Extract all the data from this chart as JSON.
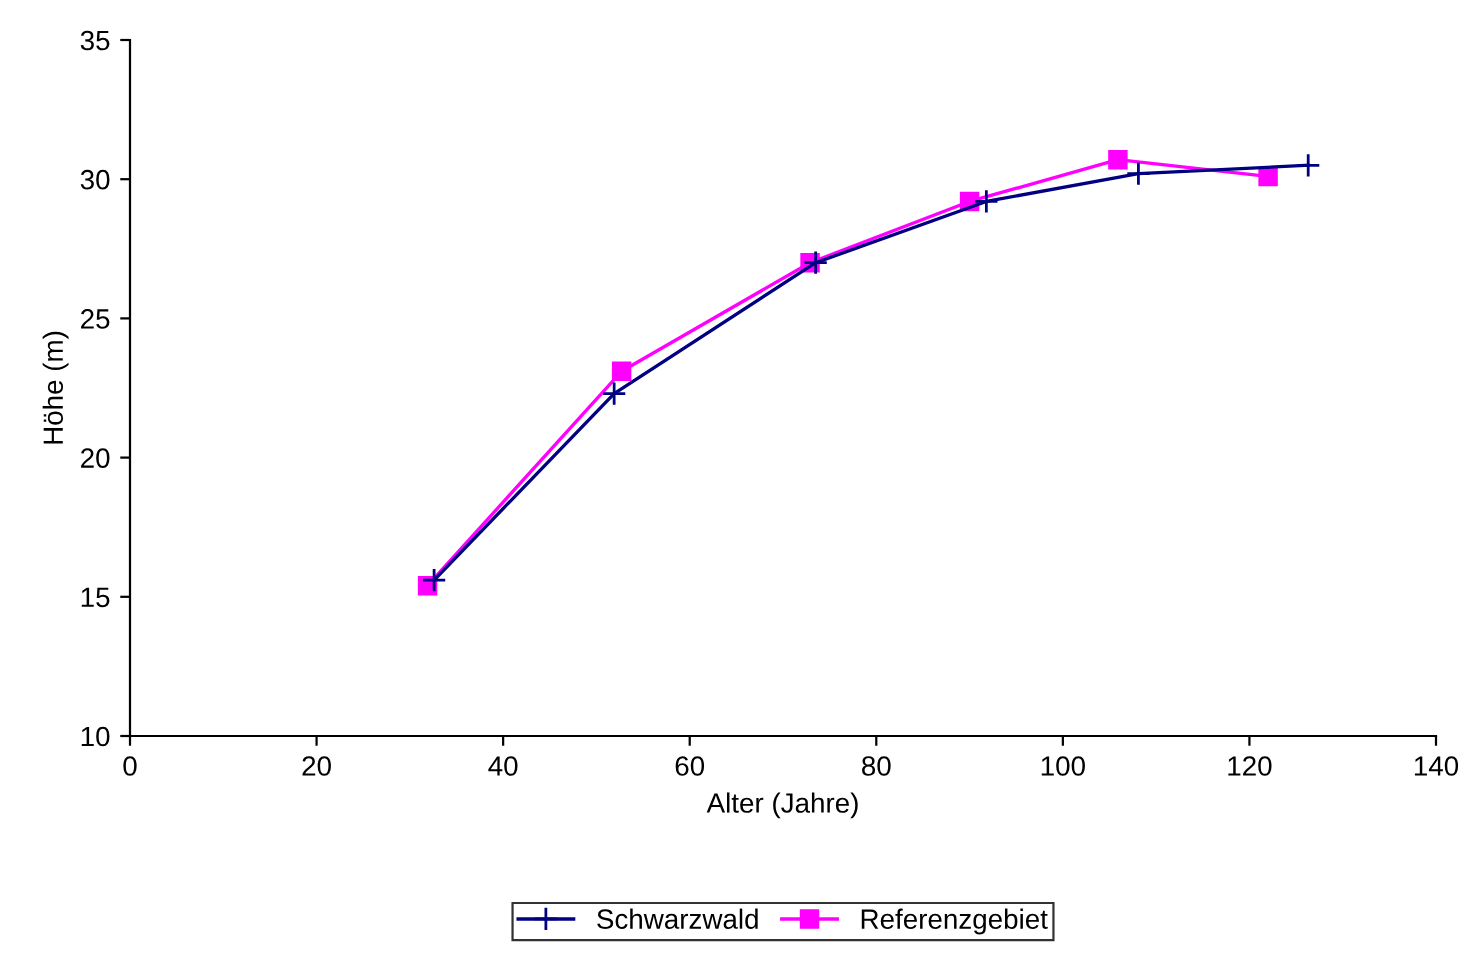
{
  "chart_data": {
    "type": "line",
    "xlabel": "Alter (Jahre)",
    "ylabel": "Höhe (m)",
    "xlim": [
      0,
      140
    ],
    "xticks": [
      0,
      20,
      40,
      60,
      80,
      100,
      120,
      140
    ],
    "ylim": [
      10,
      35
    ],
    "yticks": [
      10,
      15,
      20,
      25,
      30,
      35
    ],
    "grid": false,
    "legend": "bottom",
    "series": [
      {
        "name": "Schwarzwald",
        "color": "#000080",
        "marker": "cross",
        "x": [
          32.6,
          51.9,
          73.5,
          91.8,
          108.1,
          126.3
        ],
        "values": [
          15.6,
          22.3,
          27.0,
          29.2,
          30.2,
          30.5
        ]
      },
      {
        "name": "Referenzgebiet",
        "color": "#ff00ff",
        "marker": "square",
        "x": [
          31.9,
          52.7,
          72.9,
          90.0,
          105.9,
          122.0
        ],
        "values": [
          15.4,
          23.1,
          27.0,
          29.2,
          30.7,
          30.1
        ]
      }
    ]
  }
}
